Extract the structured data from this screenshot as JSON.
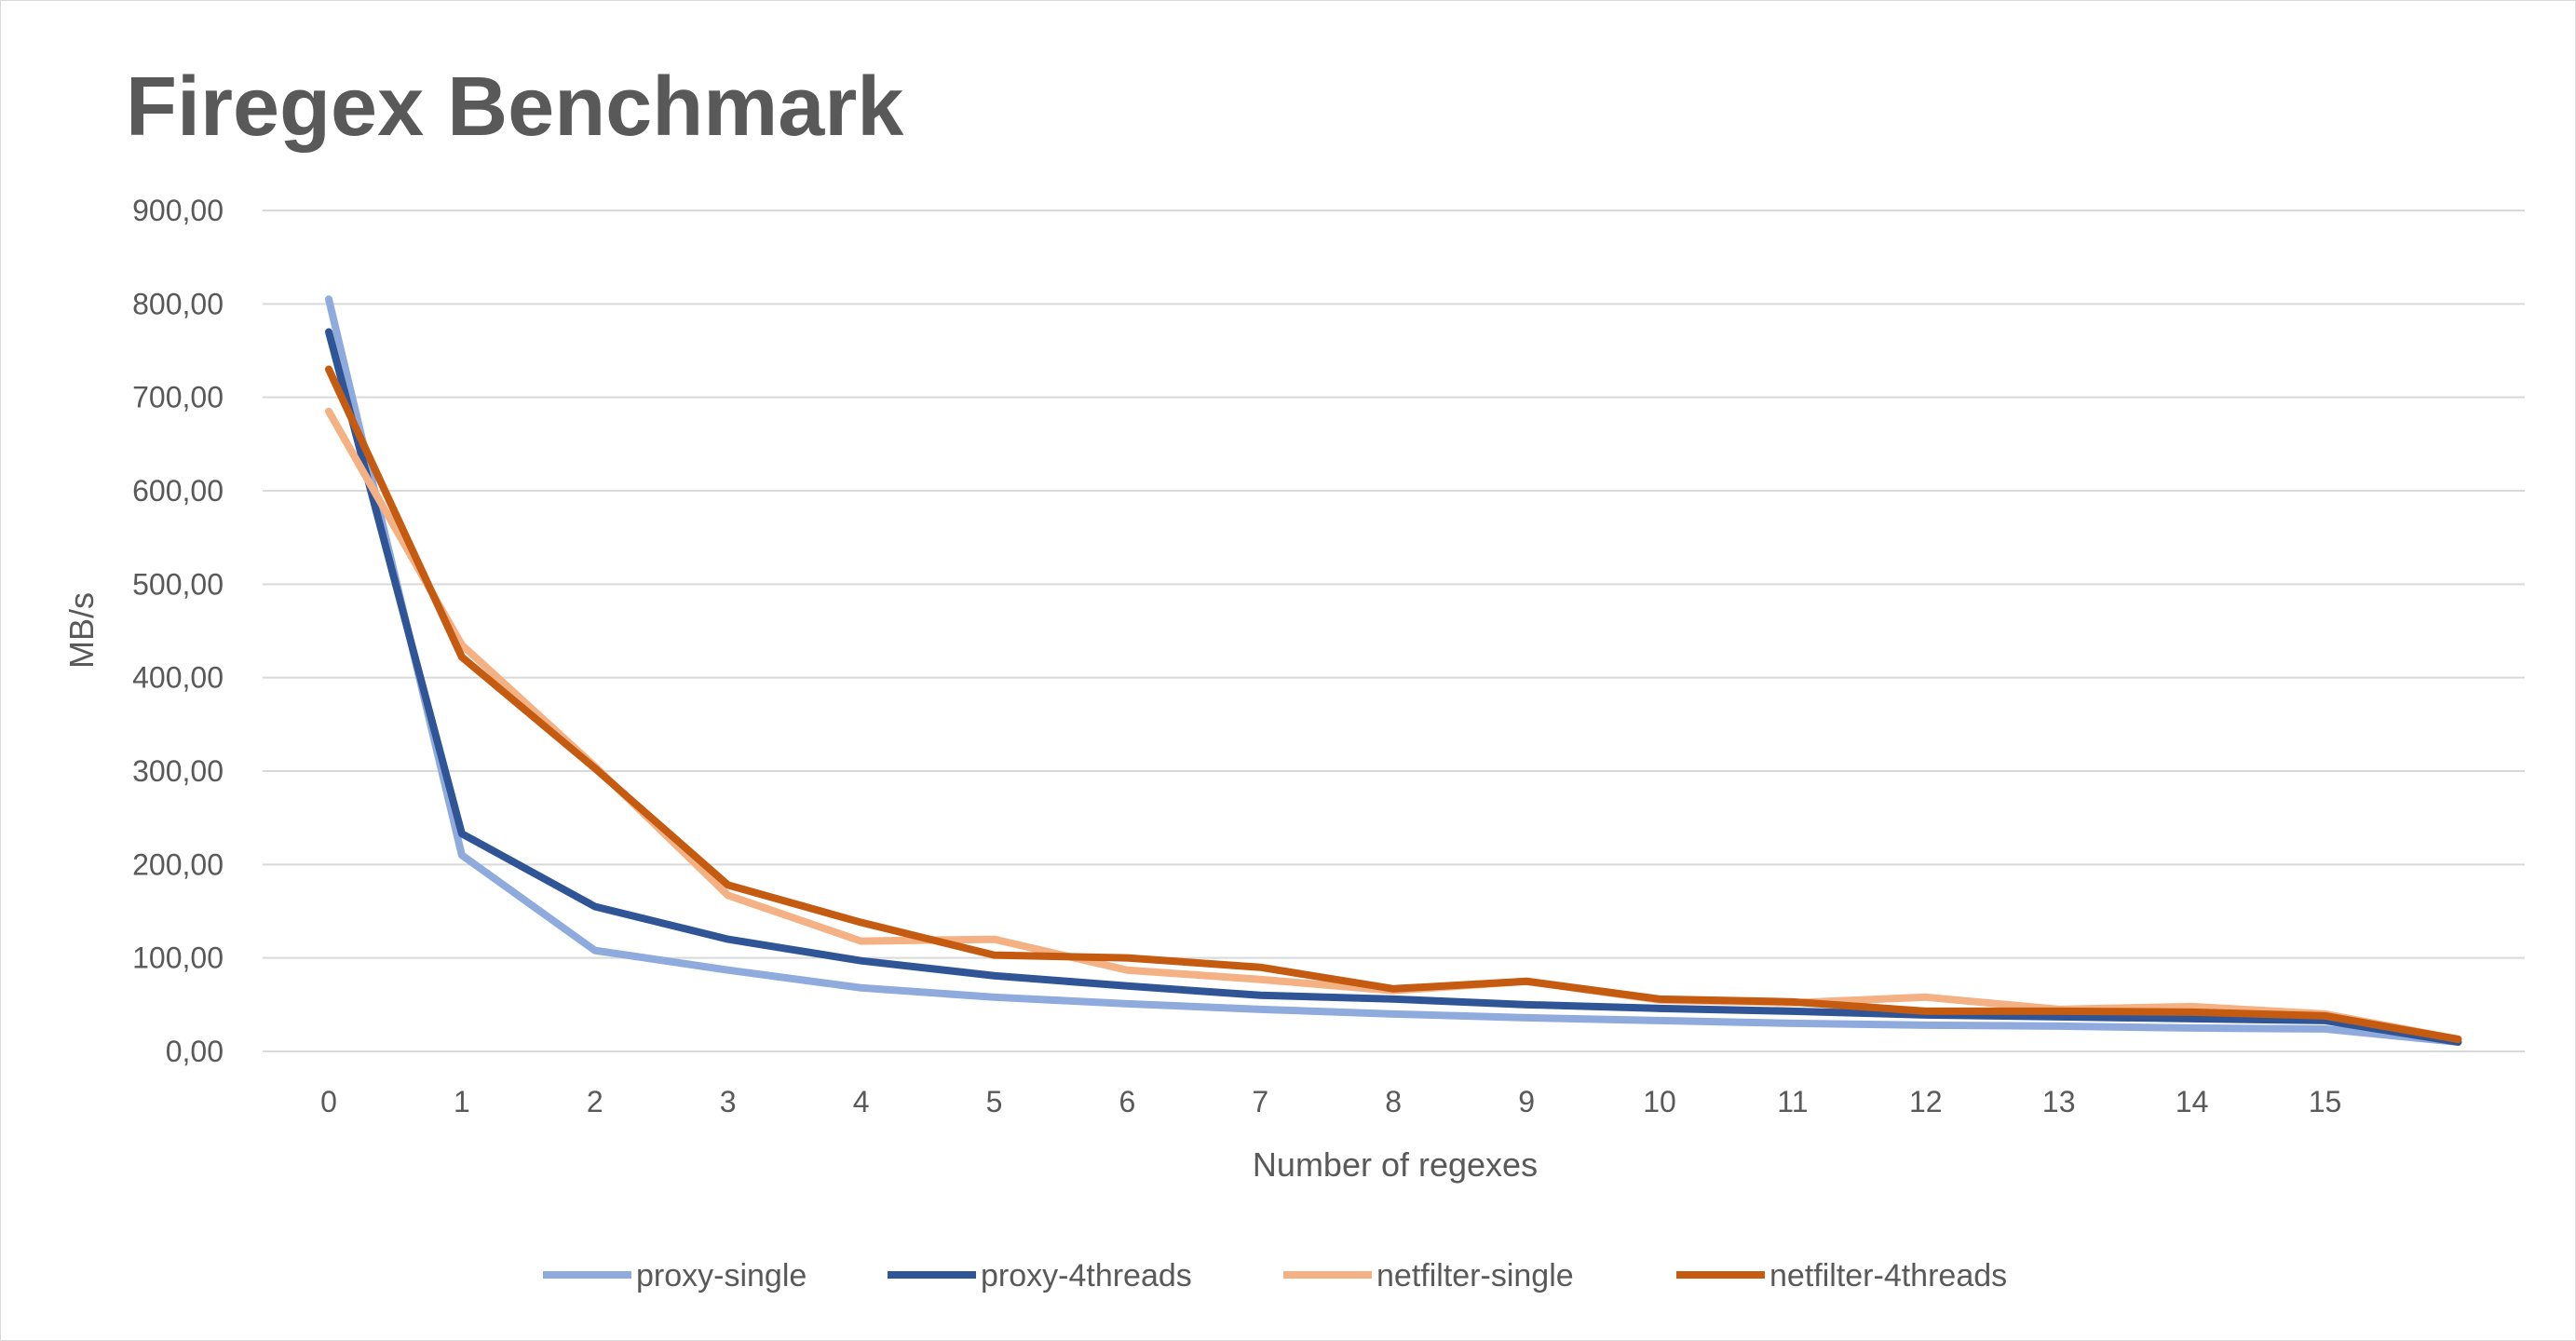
{
  "chart_data": {
    "type": "line",
    "title": "Firegex Benchmark",
    "xlabel": "Number of regexes",
    "ylabel": "MB/s",
    "categories": [
      "0",
      "1",
      "2",
      "3",
      "4",
      "5",
      "6",
      "7",
      "8",
      "9",
      "10",
      "11",
      "12",
      "13",
      "14",
      "15",
      ""
    ],
    "ylim": [
      0,
      900
    ],
    "yticks": [
      "0,00",
      "100,00",
      "200,00",
      "300,00",
      "400,00",
      "500,00",
      "600,00",
      "700,00",
      "800,00",
      "900,00"
    ],
    "grid": true,
    "legend_position": "bottom",
    "series": [
      {
        "name": "proxy-single",
        "color": "#8faadc",
        "values": [
          805,
          210,
          108,
          87,
          68,
          58,
          51,
          45,
          40,
          36,
          33,
          30,
          28,
          27,
          25,
          24,
          10
        ]
      },
      {
        "name": "proxy-4threads",
        "color": "#2f5597",
        "values": [
          770,
          233,
          155,
          120,
          97,
          81,
          70,
          60,
          56,
          50,
          46,
          43,
          39,
          37,
          35,
          33,
          10
        ]
      },
      {
        "name": "netfilter-single",
        "color": "#f4b183",
        "values": [
          685,
          435,
          305,
          167,
          118,
          120,
          87,
          77,
          65,
          75,
          55,
          52,
          58,
          45,
          48,
          40,
          13
        ]
      },
      {
        "name": "netfilter-4threads",
        "color": "#c55a11",
        "values": [
          730,
          422,
          303,
          178,
          138,
          103,
          100,
          90,
          67,
          75,
          56,
          53,
          43,
          43,
          42,
          38,
          13
        ]
      }
    ]
  }
}
